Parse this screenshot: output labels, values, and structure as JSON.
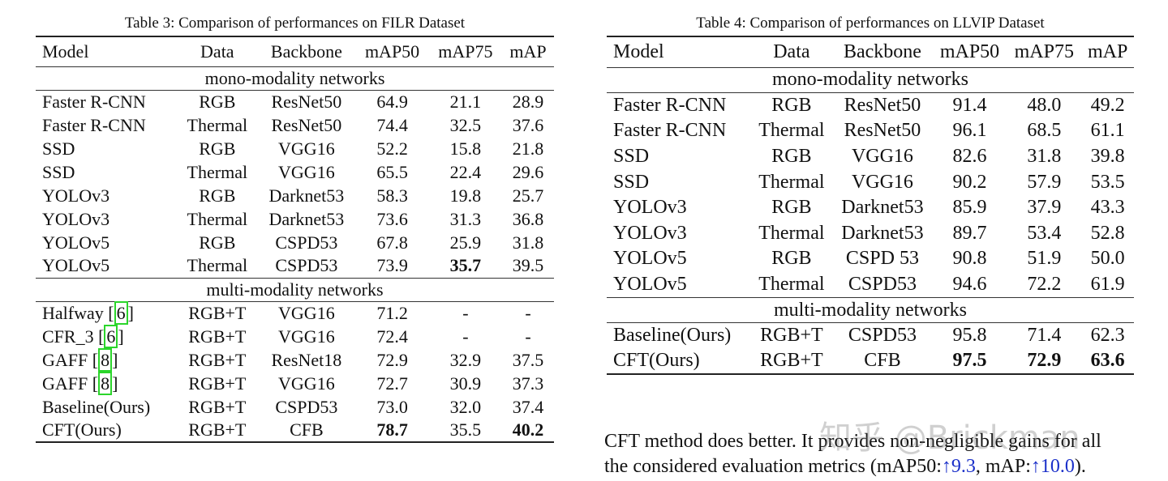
{
  "table3": {
    "caption": "Table 3:  Comparison of performances on FILR Dataset",
    "headers": [
      "Model",
      "Data",
      "Backbone",
      "mAP50",
      "mAP75",
      "mAP"
    ],
    "sections": [
      {
        "label": "mono-modality networks",
        "rows": [
          [
            [
              "Faster R-CNN"
            ],
            "RGB",
            "ResNet50",
            "64.9",
            "21.1",
            "28.9"
          ],
          [
            [
              "Faster R-CNN"
            ],
            "Thermal",
            "ResNet50",
            "74.4",
            "32.5",
            "37.6"
          ],
          [
            [
              "SSD"
            ],
            "RGB",
            "VGG16",
            "52.2",
            "15.8",
            "21.8"
          ],
          [
            [
              "SSD"
            ],
            "Thermal",
            "VGG16",
            "65.5",
            "22.4",
            "29.6"
          ],
          [
            [
              "YOLOv3"
            ],
            "RGB",
            "Darknet53",
            "58.3",
            "19.8",
            "25.7"
          ],
          [
            [
              "YOLOv3"
            ],
            "Thermal",
            "Darknet53",
            "73.6",
            "31.3",
            "36.8"
          ],
          [
            [
              "YOLOv5"
            ],
            "RGB",
            "CSPD53",
            "67.8",
            "25.9",
            "31.8"
          ],
          [
            [
              "YOLOv5"
            ],
            "Thermal",
            "CSPD53",
            "73.9",
            "*35.7",
            "39.5"
          ]
        ]
      },
      {
        "label": "multi-modality networks",
        "rows": [
          [
            [
              "Halfway ",
              "6"
            ],
            "RGB+T",
            "VGG16",
            "71.2",
            "-",
            "-"
          ],
          [
            [
              "CFR_3 ",
              "6"
            ],
            "RGB+T",
            "VGG16",
            "72.4",
            "-",
            "-"
          ],
          [
            [
              "GAFF ",
              "8"
            ],
            "RGB+T",
            "ResNet18",
            "72.9",
            "32.9",
            "37.5"
          ],
          [
            [
              "GAFF ",
              "8"
            ],
            "RGB+T",
            "VGG16",
            "72.7",
            "30.9",
            "37.3"
          ],
          [
            [
              "Baseline(Ours)"
            ],
            "RGB+T",
            "CSPD53",
            "73.0",
            "32.0",
            "37.4"
          ],
          [
            [
              "CFT(Ours)"
            ],
            "RGB+T",
            "CFB",
            "*78.7",
            "35.5",
            "*40.2"
          ]
        ]
      }
    ]
  },
  "table4": {
    "caption": "Table 4: Comparison of performances on LLVIP Dataset",
    "headers": [
      "Model",
      "Data",
      "Backbone",
      "mAP50",
      "mAP75",
      "mAP"
    ],
    "sections": [
      {
        "label": "mono-modality networks",
        "rows": [
          [
            [
              "Faster R-CNN"
            ],
            "RGB",
            "ResNet50",
            "91.4",
            "48.0",
            "49.2"
          ],
          [
            [
              "Faster R-CNN"
            ],
            "Thermal",
            "ResNet50",
            "96.1",
            "68.5",
            "61.1"
          ],
          [
            [
              "SSD"
            ],
            "RGB",
            "VGG16",
            "82.6",
            "31.8",
            "39.8"
          ],
          [
            [
              "SSD"
            ],
            "Thermal",
            "VGG16",
            "90.2",
            "57.9",
            "53.5"
          ],
          [
            [
              "YOLOv3"
            ],
            "RGB",
            "Darknet53",
            "85.9",
            "37.9",
            "43.3"
          ],
          [
            [
              "YOLOv3"
            ],
            "Thermal",
            "Darknet53",
            "89.7",
            "53.4",
            "52.8"
          ],
          [
            [
              "YOLOv5"
            ],
            "RGB",
            "CSPD 53",
            "90.8",
            "51.9",
            "50.0"
          ],
          [
            [
              "YOLOv5"
            ],
            "Thermal",
            "CSPD53",
            "94.6",
            "72.2",
            "61.9"
          ]
        ]
      },
      {
        "label": "multi-modality networks",
        "rows": [
          [
            [
              "Baseline(Ours)"
            ],
            "RGB+T",
            "CSPD53",
            "95.8",
            "71.4",
            "62.3"
          ],
          [
            [
              "CFT(Ours)"
            ],
            "RGB+T",
            "CFB",
            "*97.5",
            "*72.9",
            "*63.6"
          ]
        ]
      }
    ]
  },
  "paragraph": {
    "line1": "CFT method does better. It provides non-negligible gains for all",
    "line2_prefix": "the considered evaluation metrics (mAP50:",
    "gain1": "↑9.3",
    "mid": ", mAP:",
    "gain2": "↑10.0",
    "suffix": ").",
    "link_color": "#1a2fc9"
  },
  "watermark": "知乎 @Brickman"
}
